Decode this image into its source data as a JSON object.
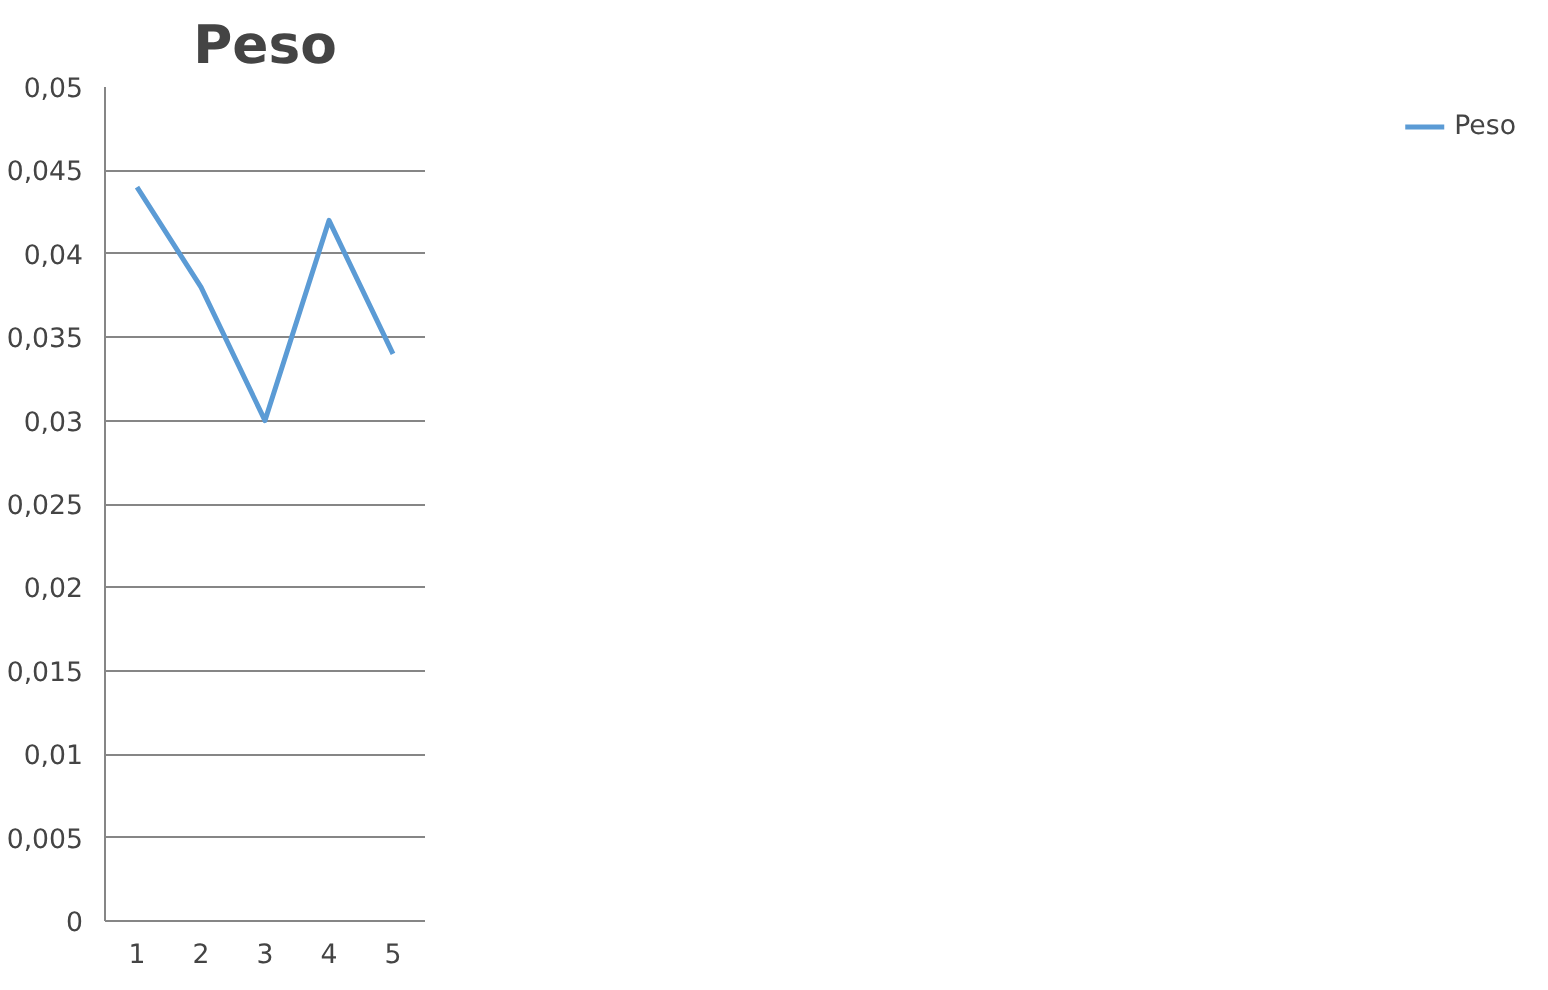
{
  "chart_data": {
    "type": "line",
    "title": "Peso",
    "categories": [
      "1",
      "2",
      "3",
      "4",
      "5"
    ],
    "series": [
      {
        "name": "Peso",
        "color": "#5b9bd5",
        "values": [
          0.044,
          0.038,
          0.03,
          0.042,
          0.034
        ]
      }
    ],
    "ylim": [
      0,
      0.05
    ],
    "yticks": [
      {
        "value": 0,
        "label": "0"
      },
      {
        "value": 0.005,
        "label": "0,005"
      },
      {
        "value": 0.01,
        "label": "0,01"
      },
      {
        "value": 0.015,
        "label": "0,015"
      },
      {
        "value": 0.02,
        "label": "0,02"
      },
      {
        "value": 0.025,
        "label": "0,025"
      },
      {
        "value": 0.03,
        "label": "0,03"
      },
      {
        "value": 0.035,
        "label": "0,035"
      },
      {
        "value": 0.04,
        "label": "0,04"
      },
      {
        "value": 0.045,
        "label": "0,045"
      },
      {
        "value": 0.05,
        "label": "0,05"
      }
    ],
    "grid": "y",
    "legend": "right",
    "marker": "none",
    "line_style": "solid"
  }
}
